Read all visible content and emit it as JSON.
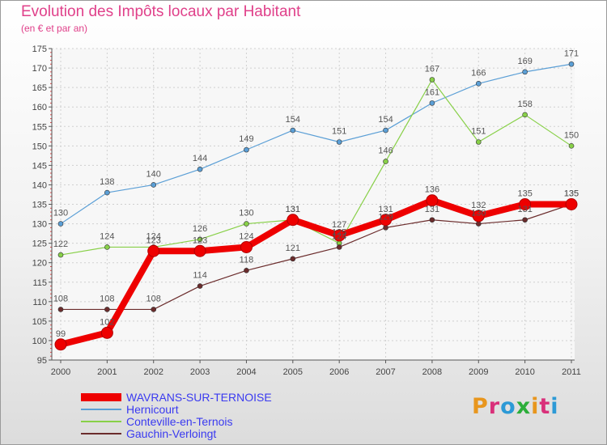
{
  "header": {
    "title": "Evolution des Impôts locaux par Habitant",
    "subtitle": "(en € et par an)"
  },
  "logo": {
    "text": "Proxiti",
    "letters": [
      "P",
      "r",
      "o",
      "x",
      "i",
      "t",
      "i"
    ],
    "colors": [
      "#e8961e",
      "#d9307a",
      "#2c9ad6",
      "#2cae3a",
      "#e8961e",
      "#d9307a",
      "#2c9ad6"
    ]
  },
  "chart_data": {
    "type": "line",
    "x": [
      "2000",
      "2001",
      "2002",
      "2003",
      "2004",
      "2005",
      "2006",
      "2007",
      "2008",
      "2009",
      "2010",
      "2011"
    ],
    "ylim": [
      95,
      175
    ],
    "yticks": [
      95,
      100,
      105,
      110,
      115,
      120,
      125,
      130,
      135,
      140,
      145,
      150,
      155,
      160,
      165,
      170,
      175
    ],
    "grid": true,
    "legend_position": "bottom-left",
    "series": [
      {
        "name": "WAVRANS-SUR-TERNOISE",
        "color": "#ee0000",
        "width": 8,
        "marker": 7,
        "values": [
          99,
          102,
          123,
          123,
          124,
          131,
          127,
          131,
          136,
          132,
          135,
          135
        ],
        "labels": [
          "99",
          "102",
          "123",
          "123",
          "124",
          "131",
          "127",
          "131",
          "136",
          "132",
          "135",
          "135"
        ]
      },
      {
        "name": "Hernicourt",
        "color": "#5b9fd6",
        "width": 1.2,
        "marker": 3,
        "values": [
          130,
          138,
          140,
          144,
          149,
          154,
          151,
          154,
          161,
          166,
          169,
          171
        ],
        "labels": [
          "130",
          "138",
          "140",
          "144",
          "149",
          "154",
          "151",
          "154",
          "161",
          "166",
          "169",
          "171"
        ]
      },
      {
        "name": "Conteville-en-Ternois",
        "color": "#88d048",
        "width": 1.2,
        "marker": 3,
        "values": [
          122,
          124,
          124,
          126,
          130,
          131,
          125,
          146,
          167,
          151,
          158,
          150
        ],
        "labels": [
          "122",
          "124",
          "124",
          "126",
          "130",
          "131",
          "125",
          "146",
          "167",
          "151",
          "158",
          "150"
        ]
      },
      {
        "name": "Gauchin-Verloingt",
        "color": "#6b2c2c",
        "width": 1.2,
        "marker": 3,
        "values": [
          108,
          108,
          108,
          114,
          118,
          121,
          124,
          129,
          131,
          130,
          131,
          135
        ],
        "labels": [
          "108",
          "108",
          "108",
          "114",
          "118",
          "121",
          "124",
          "129",
          "131",
          "130",
          "131",
          "135"
        ]
      }
    ]
  }
}
